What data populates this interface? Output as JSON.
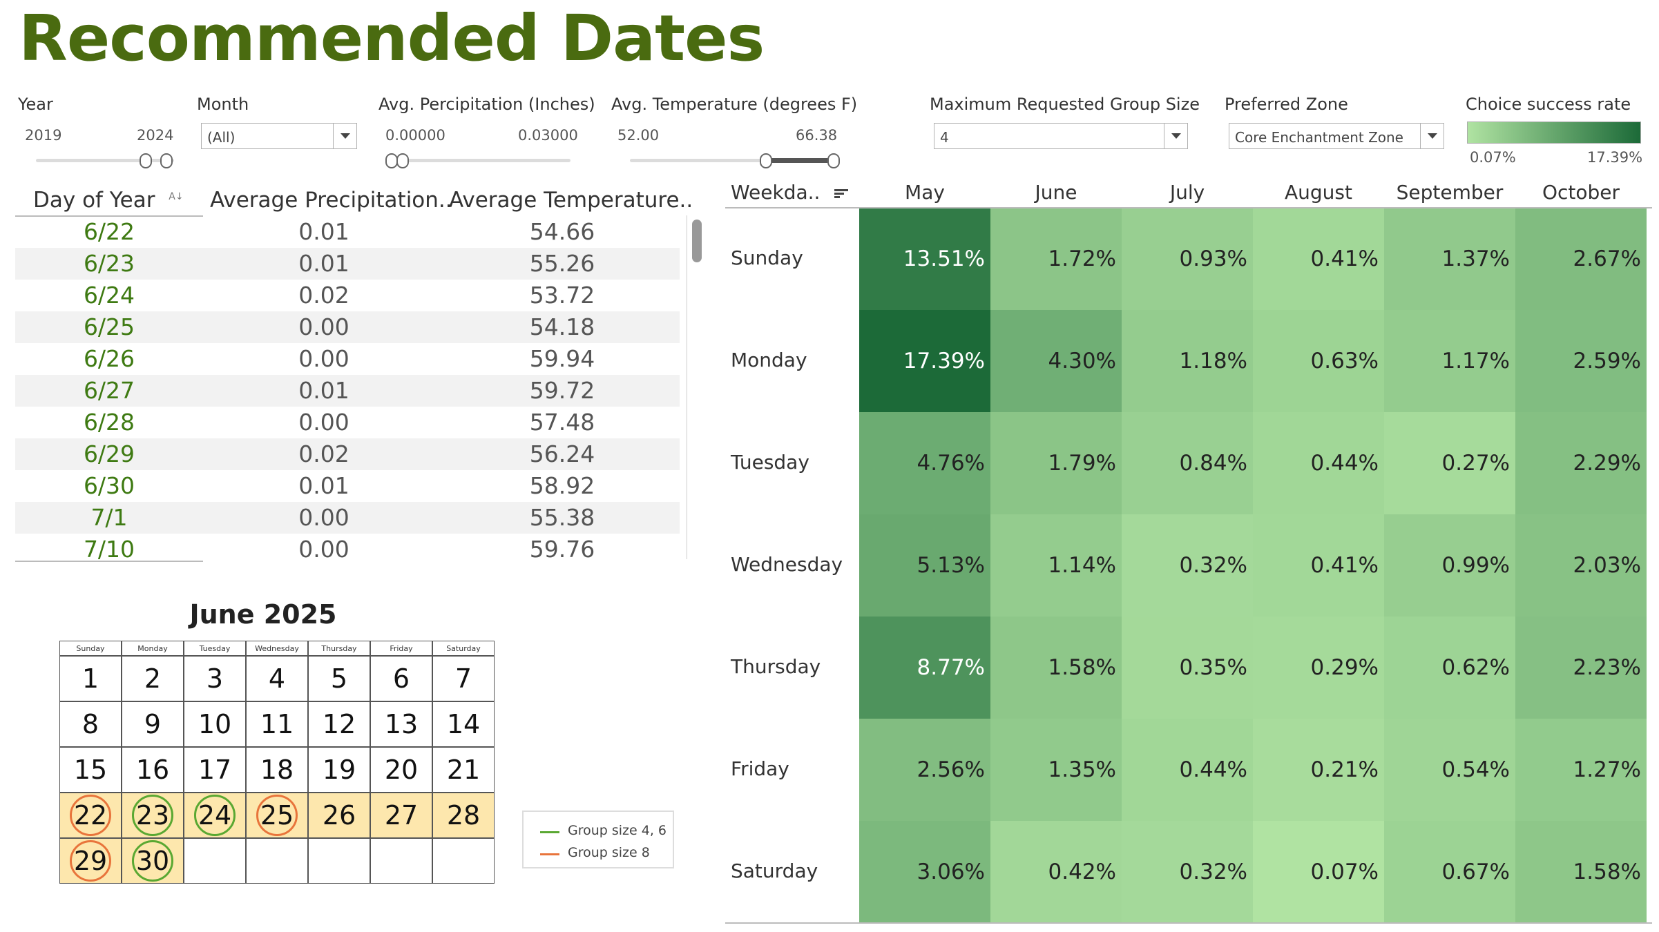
{
  "title": "Recommended Dates",
  "filters": {
    "year": {
      "label": "Year",
      "min": "2019",
      "max": "2024"
    },
    "month": {
      "label": "Month",
      "value": "(All)"
    },
    "precip": {
      "label": "Avg. Percipitation (Inches)",
      "min": "0.00000",
      "max": "0.03000"
    },
    "temp": {
      "label": "Avg. Temperature (degrees F)",
      "min": "52.00",
      "max": "66.38"
    },
    "group_size": {
      "label": "Maximum Requested Group Size",
      "value": "4"
    },
    "zone": {
      "label": "Preferred Zone",
      "value": "Core Enchantment Zone"
    },
    "legend": {
      "label": "Choice success rate",
      "min": "0.07%",
      "max": "17.39%",
      "color_low": "#b0e3a2",
      "color_high": "#1c6a38"
    }
  },
  "table": {
    "headers": [
      "Day of Year",
      "Average Precipitation..",
      "Average Temperature.."
    ],
    "rows": [
      {
        "day": "6/22",
        "precip": "0.01",
        "temp": "54.66"
      },
      {
        "day": "6/23",
        "precip": "0.01",
        "temp": "55.26"
      },
      {
        "day": "6/24",
        "precip": "0.02",
        "temp": "53.72"
      },
      {
        "day": "6/25",
        "precip": "0.00",
        "temp": "54.18"
      },
      {
        "day": "6/26",
        "precip": "0.00",
        "temp": "59.94"
      },
      {
        "day": "6/27",
        "precip": "0.01",
        "temp": "59.72"
      },
      {
        "day": "6/28",
        "precip": "0.00",
        "temp": "57.48"
      },
      {
        "day": "6/29",
        "precip": "0.02",
        "temp": "56.24"
      },
      {
        "day": "6/30",
        "precip": "0.01",
        "temp": "58.92"
      },
      {
        "day": "7/1",
        "precip": "0.00",
        "temp": "55.38"
      },
      {
        "day": "7/10",
        "precip": "0.00",
        "temp": "59.76"
      }
    ]
  },
  "heatmap": {
    "row_header": "Weekda..",
    "columns": [
      "May",
      "June",
      "July",
      "August",
      "September",
      "October"
    ],
    "rows": [
      {
        "day": "Sunday",
        "values": [
          "13.51%",
          "1.72%",
          "0.93%",
          "0.41%",
          "1.37%",
          "2.67%"
        ]
      },
      {
        "day": "Monday",
        "values": [
          "17.39%",
          "4.30%",
          "1.18%",
          "0.63%",
          "1.17%",
          "2.59%"
        ]
      },
      {
        "day": "Tuesday",
        "values": [
          "4.76%",
          "1.79%",
          "0.84%",
          "0.44%",
          "0.27%",
          "2.29%"
        ]
      },
      {
        "day": "Wednesday",
        "values": [
          "5.13%",
          "1.14%",
          "0.32%",
          "0.41%",
          "0.99%",
          "2.03%"
        ]
      },
      {
        "day": "Thursday",
        "values": [
          "8.77%",
          "1.58%",
          "0.35%",
          "0.29%",
          "0.62%",
          "2.23%"
        ]
      },
      {
        "day": "Friday",
        "values": [
          "2.56%",
          "1.35%",
          "0.44%",
          "0.21%",
          "0.54%",
          "1.27%"
        ]
      },
      {
        "day": "Saturday",
        "values": [
          "3.06%",
          "0.42%",
          "0.32%",
          "0.07%",
          "0.67%",
          "1.58%"
        ]
      }
    ]
  },
  "calendar": {
    "title": "June 2025",
    "day_names": [
      "Sunday",
      "Monday",
      "Tuesday",
      "Wednesday",
      "Thursday",
      "Friday",
      "Saturday"
    ],
    "weeks": [
      [
        "1",
        "2",
        "3",
        "4",
        "5",
        "6",
        "7"
      ],
      [
        "8",
        "9",
        "10",
        "11",
        "12",
        "13",
        "14"
      ],
      [
        "15",
        "16",
        "17",
        "18",
        "19",
        "20",
        "21"
      ],
      [
        "22",
        "23",
        "24",
        "25",
        "26",
        "27",
        "28"
      ],
      [
        "29",
        "30",
        "",
        "",
        "",
        "",
        ""
      ]
    ],
    "highlight_color": "#fde7ad",
    "rings": [
      {
        "day": "22",
        "color": "#e8743b"
      },
      {
        "day": "23",
        "color": "#5aa832"
      },
      {
        "day": "24",
        "color": "#5aa832"
      },
      {
        "day": "25",
        "color": "#e8743b"
      },
      {
        "day": "29",
        "color": "#e8743b"
      },
      {
        "day": "30",
        "color": "#5aa832"
      }
    ],
    "legend": [
      {
        "label": "Group size 4, 6",
        "color": "#5aa832"
      },
      {
        "label": "Group size 8",
        "color": "#e8743b"
      }
    ]
  }
}
